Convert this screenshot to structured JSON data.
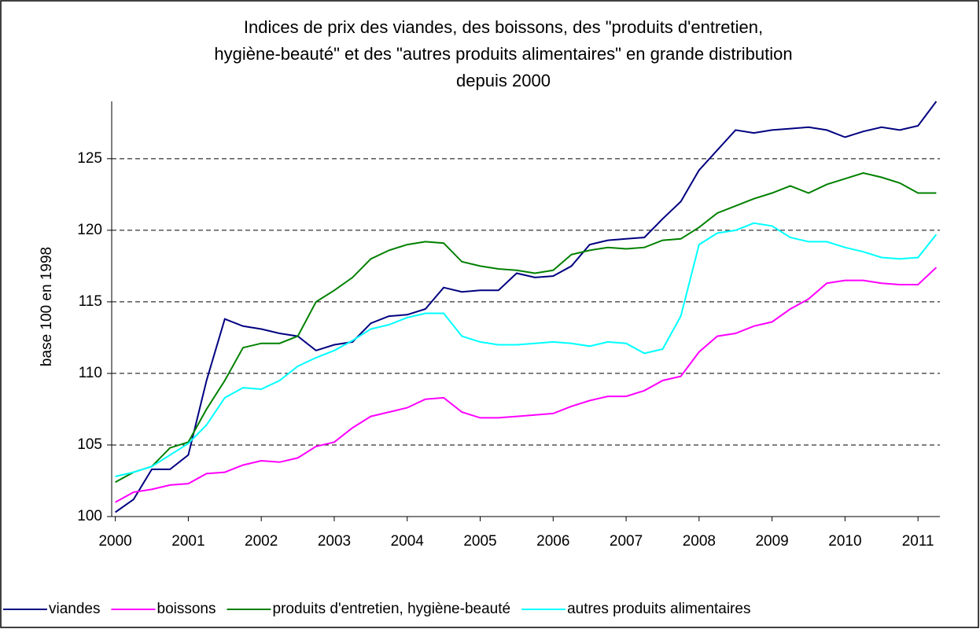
{
  "chart_data": {
    "type": "line",
    "title": [
      "Indices de prix des viandes, des boissons, des \"produits d'entretien,",
      "hygiène-beauté\" et des \"autres produits alimentaires\" en grande distribution",
      "depuis 2000"
    ],
    "y_label": "base 100 en 1998",
    "x": [
      2000,
      2000.25,
      2000.5,
      2000.75,
      2001,
      2001.25,
      2001.5,
      2001.75,
      2002,
      2002.25,
      2002.5,
      2002.75,
      2003,
      2003.25,
      2003.5,
      2003.75,
      2004,
      2004.25,
      2004.5,
      2004.75,
      2005,
      2005.25,
      2005.5,
      2005.75,
      2006,
      2006.25,
      2006.5,
      2006.75,
      2007,
      2007.25,
      2007.5,
      2007.75,
      2008,
      2008.25,
      2008.5,
      2008.75,
      2009,
      2009.25,
      2009.5,
      2009.75,
      2010,
      2010.25,
      2010.5,
      2010.75,
      2011,
      2011.25
    ],
    "xlim": [
      1999.95,
      2011.3
    ],
    "xticks": [
      2000,
      2001,
      2002,
      2003,
      2004,
      2005,
      2006,
      2007,
      2008,
      2009,
      2010,
      2011
    ],
    "ylim": [
      100,
      129
    ],
    "yticks": [
      100,
      105,
      110,
      115,
      120,
      125
    ],
    "grid": true,
    "legend": "bottom",
    "series": [
      {
        "name": "viandes",
        "color": "#000080",
        "values": [
          100.3,
          101.2,
          103.3,
          103.3,
          104.3,
          109.5,
          113.8,
          113.3,
          113.1,
          112.8,
          112.6,
          111.6,
          112.0,
          112.2,
          113.5,
          114.0,
          114.1,
          114.5,
          116.0,
          115.7,
          115.8,
          115.8,
          117.0,
          116.7,
          116.8,
          117.5,
          119.0,
          119.3,
          119.4,
          119.5,
          120.8,
          122.0,
          124.2,
          125.6,
          127.0,
          126.8,
          127.0,
          127.1,
          127.2,
          127.0,
          126.5,
          126.9,
          127.2,
          127.0,
          127.3,
          129.0
        ]
      },
      {
        "name": "boissons",
        "color": "#ff00ff",
        "values": [
          101.0,
          101.7,
          101.9,
          102.2,
          102.3,
          103.0,
          103.1,
          103.6,
          103.9,
          103.8,
          104.1,
          104.9,
          105.2,
          106.2,
          107.0,
          107.3,
          107.6,
          108.2,
          108.3,
          107.3,
          106.9,
          106.9,
          107.0,
          107.1,
          107.2,
          107.7,
          108.1,
          108.4,
          108.4,
          108.8,
          109.5,
          109.8,
          111.5,
          112.6,
          112.8,
          113.3,
          113.6,
          114.5,
          115.2,
          116.3,
          116.5,
          116.5,
          116.3,
          116.2,
          116.2,
          117.4
        ]
      },
      {
        "name": "produits d'entretien, hygiène-beauté",
        "color": "#008000",
        "values": [
          102.4,
          103.1,
          103.5,
          104.8,
          105.2,
          107.5,
          109.5,
          111.8,
          112.1,
          112.1,
          112.6,
          115.0,
          115.8,
          116.7,
          118.0,
          118.6,
          119.0,
          119.2,
          119.1,
          117.8,
          117.5,
          117.3,
          117.2,
          117.0,
          117.2,
          118.3,
          118.6,
          118.8,
          118.7,
          118.8,
          119.3,
          119.4,
          120.2,
          121.2,
          121.7,
          122.2,
          122.6,
          123.1,
          122.6,
          123.2,
          123.6,
          124.0,
          123.7,
          123.3,
          122.6,
          122.6
        ]
      },
      {
        "name": "autres produits alimentaires",
        "color": "#00ffff",
        "values": [
          102.8,
          103.1,
          103.5,
          104.3,
          105.1,
          106.4,
          108.3,
          109.0,
          108.9,
          109.5,
          110.5,
          111.1,
          111.6,
          112.3,
          113.1,
          113.4,
          113.9,
          114.2,
          114.2,
          112.6,
          112.2,
          112.0,
          112.0,
          112.1,
          112.2,
          112.1,
          111.9,
          112.2,
          112.1,
          111.4,
          111.7,
          114.0,
          119.0,
          119.8,
          120.0,
          120.5,
          120.3,
          119.5,
          119.2,
          119.2,
          118.8,
          118.5,
          118.1,
          118.0,
          118.1,
          119.7
        ]
      }
    ]
  }
}
